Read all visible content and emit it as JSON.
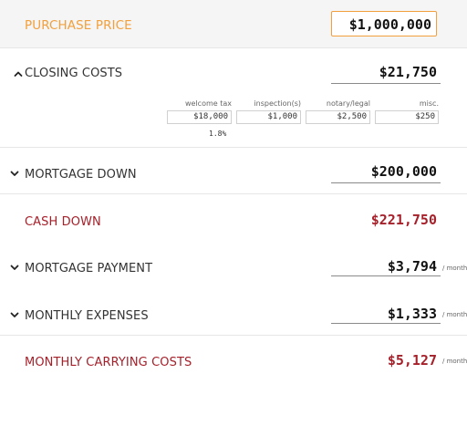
{
  "purchase_price": {
    "label": "PURCHASE PRICE",
    "value": "$1,000,000"
  },
  "closing_costs": {
    "label": "CLOSING COSTS",
    "value": "$21,750",
    "expanded": true,
    "items": [
      {
        "label": "welcome tax",
        "value": "$18,000",
        "percent": "1.8%"
      },
      {
        "label": "inspection(s)",
        "value": "$1,000"
      },
      {
        "label": "notary/legal",
        "value": "$2,500"
      },
      {
        "label": "misc.",
        "value": "$250"
      }
    ]
  },
  "mortgage_down": {
    "label": "MORTGAGE DOWN",
    "value": "$200,000"
  },
  "cash_down": {
    "label": "CASH DOWN",
    "value": "$221,750"
  },
  "mortgage_payment": {
    "label": "MORTGAGE PAYMENT",
    "value": "$3,794",
    "unit": "/ month"
  },
  "monthly_expenses": {
    "label": "MONTHLY EXPENSES",
    "value": "$1,333",
    "unit": "/ month"
  },
  "monthly_carrying_costs": {
    "label": "MONTHLY CARRYING COSTS",
    "value": "$5,127",
    "unit": "/ month"
  },
  "colors": {
    "accent_orange": "#f2a03d",
    "accent_red": "#a6202a",
    "text": "#333333",
    "divider": "#e6e6e6"
  },
  "icons": {
    "collapse": "chevron-up-icon",
    "expand": "chevron-down-icon"
  }
}
